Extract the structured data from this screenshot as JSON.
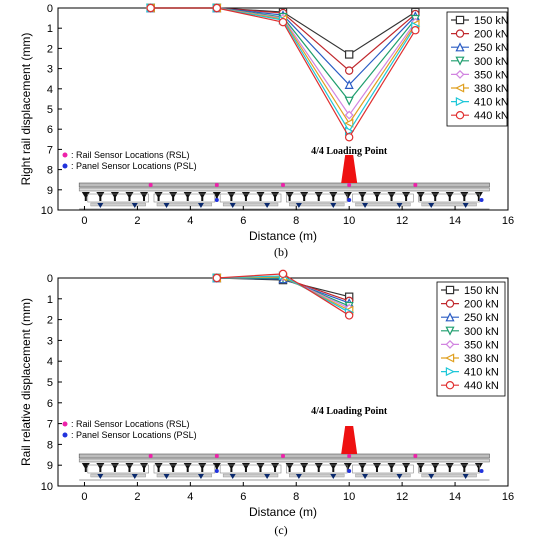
{
  "chart_data": [
    {
      "type": "line",
      "caption": "(b)",
      "xlabel": "Distance (m)",
      "ylabel": "Right rail displacement (mm)",
      "xlim": [
        -1,
        16
      ],
      "ylim": [
        0,
        10
      ],
      "y_inverted": true,
      "xticks": [
        "0",
        "2",
        "4",
        "6",
        "8",
        "10",
        "12",
        "14",
        "16"
      ],
      "yticks": [
        "0",
        "1",
        "2",
        "3",
        "4",
        "5",
        "6",
        "7",
        "8",
        "9",
        "10"
      ],
      "legend_position": "top-right",
      "annotation": "4/4 Loading Point",
      "sensor_legend": [
        {
          "label": ": Rail Sensor Locations (RSL)",
          "color": "#ee22aa"
        },
        {
          "label": ": Panel Sensor Locations (PSL)",
          "color": "#2233dd"
        }
      ],
      "x": [
        2.5,
        5,
        7.5,
        10,
        12.5
      ],
      "series": [
        {
          "name": "150 kN",
          "color": "#333333",
          "marker": "square",
          "values": [
            0,
            0,
            0.2,
            2.3,
            0.2
          ]
        },
        {
          "name": "200 kN",
          "color": "#c0282d",
          "marker": "circle",
          "values": [
            0,
            0,
            0.25,
            3.1,
            0.3
          ]
        },
        {
          "name": "250 kN",
          "color": "#2a5cc4",
          "marker": "triangle-up",
          "values": [
            0,
            0,
            0.35,
            3.8,
            0.4
          ]
        },
        {
          "name": "300 kN",
          "color": "#1f9e6e",
          "marker": "triangle-down",
          "values": [
            0,
            0,
            0.45,
            4.6,
            0.55
          ]
        },
        {
          "name": "350 kN",
          "color": "#d184e0",
          "marker": "diamond",
          "values": [
            0,
            0,
            0.5,
            5.3,
            0.7
          ]
        },
        {
          "name": "380 kN",
          "color": "#e0a020",
          "marker": "triangle-left",
          "values": [
            0,
            0,
            0.55,
            5.7,
            0.8
          ]
        },
        {
          "name": "410 kN",
          "color": "#1ec7d8",
          "marker": "triangle-right",
          "values": [
            0,
            0,
            0.6,
            6.1,
            0.9
          ]
        },
        {
          "name": "440 kN",
          "color": "#e03030",
          "marker": "circle",
          "values": [
            0,
            0,
            0.7,
            6.4,
            1.1
          ]
        }
      ]
    },
    {
      "type": "line",
      "caption": "(c)",
      "xlabel": "Distance (m)",
      "ylabel": "Rail relative displacement (mm)",
      "xlim": [
        -1,
        16
      ],
      "ylim": [
        0,
        10
      ],
      "y_inverted": true,
      "xticks": [
        "0",
        "2",
        "4",
        "6",
        "8",
        "10",
        "12",
        "14",
        "16"
      ],
      "yticks": [
        "0",
        "1",
        "2",
        "3",
        "4",
        "5",
        "6",
        "7",
        "8",
        "9",
        "10"
      ],
      "legend_position": "top-right",
      "annotation": "4/4 Loading Point",
      "sensor_legend": [
        {
          "label": ": Rail Sensor Locations (RSL)",
          "color": "#ee22aa"
        },
        {
          "label": ": Panel Sensor Locations (PSL)",
          "color": "#2233dd"
        }
      ],
      "x": [
        5,
        7.5,
        10
      ],
      "series": [
        {
          "name": "150 kN",
          "color": "#333333",
          "marker": "square",
          "values": [
            0,
            0.1,
            0.9
          ]
        },
        {
          "name": "200 kN",
          "color": "#c0282d",
          "marker": "circle",
          "values": [
            0,
            0,
            1.1
          ]
        },
        {
          "name": "250 kN",
          "color": "#2a5cc4",
          "marker": "triangle-up",
          "values": [
            0,
            0.05,
            1.2
          ]
        },
        {
          "name": "300 kN",
          "color": "#1f9e6e",
          "marker": "triangle-down",
          "values": [
            0,
            0,
            1.35
          ]
        },
        {
          "name": "350 kN",
          "color": "#d184e0",
          "marker": "diamond",
          "values": [
            0,
            -0.05,
            1.45
          ]
        },
        {
          "name": "380 kN",
          "color": "#e0a020",
          "marker": "triangle-left",
          "values": [
            0,
            -0.05,
            1.55
          ]
        },
        {
          "name": "410 kN",
          "color": "#1ec7d8",
          "marker": "triangle-right",
          "values": [
            0,
            -0.1,
            1.65
          ]
        },
        {
          "name": "440 kN",
          "color": "#e03030",
          "marker": "circle",
          "values": [
            0,
            -0.2,
            1.8
          ]
        }
      ]
    }
  ]
}
